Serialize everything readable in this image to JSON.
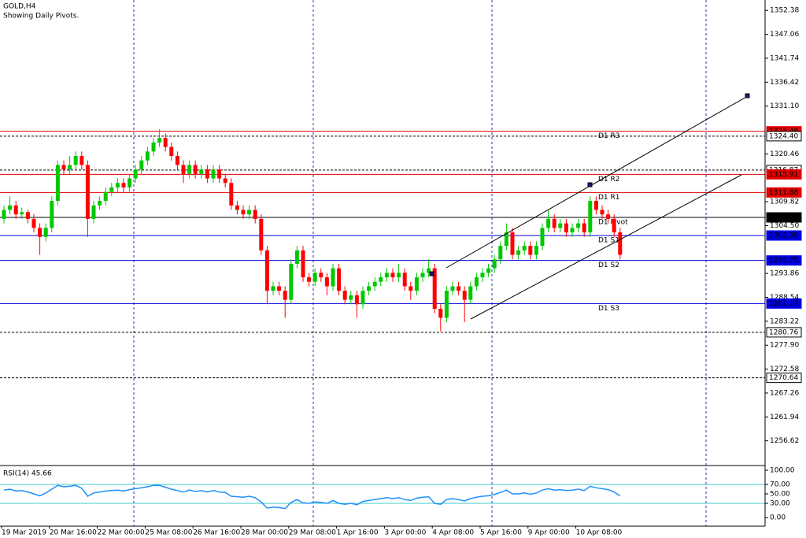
{
  "chart_data": {
    "type": "candlestick",
    "title": "GOLD,H4",
    "subtitle": "Showing Daily Pivots.",
    "up_color": "#00c800",
    "down_color": "#ff0000",
    "ylim": [
      1251.3,
      1354.7
    ],
    "yticks": [
      1352.38,
      1347.06,
      1341.74,
      1336.42,
      {
        "value": 1331.1,
        "label": "1331.10"
      },
      1320.46,
      1309.82,
      {
        "value": 1304.5,
        "label": "1304.50"
      },
      1293.86,
      1288.54,
      1283.22,
      {
        "value": 1277.9,
        "label": "1277.90"
      },
      1272.58,
      1267.26,
      1261.94,
      1256.62
    ],
    "xlabels": [
      "19 Mar 2019",
      "20 Mar 16:00",
      "22 Mar 00:00",
      "25 Mar 08:00",
      "26 Mar 16:00",
      "28 Mar 00:00",
      "29 Mar 08:00",
      "1 Apr 16:00",
      "3 Apr 00:00",
      "4 Apr 08:00",
      "5 Apr 16:00",
      "9 Apr 00:00",
      "10 Apr 08:00"
    ],
    "levels": [
      {
        "name": "D1 R3",
        "value": 1325.49,
        "color": "#e00000",
        "dashed": false
      },
      {
        "value": 1324.4,
        "label": "1324.40",
        "color": "#000000",
        "dashed": true
      },
      {
        "value": 1316.87,
        "color": "#000000",
        "dashed": true
      },
      {
        "name": "D1 R2",
        "value": 1315.91,
        "color": "#e00000",
        "dashed": false
      },
      {
        "name": "D1 R1",
        "value": 1311.88,
        "color": "#e00000",
        "dashed": false
      },
      {
        "name": "D1 Pivot",
        "value": 1306.33,
        "color": "#000000",
        "dashed": false
      },
      {
        "name": "D1 S1",
        "value": 1302.3,
        "label": "1302.30",
        "color": "#0000e0",
        "dashed": false
      },
      {
        "name": "D1 S2",
        "value": 1296.75,
        "color": "#0000e0",
        "dashed": false
      },
      {
        "name": "D1 S3",
        "value": 1287.17,
        "color": "#0000e0",
        "dashed": false
      },
      {
        "value": 1280.76,
        "color": "#000000",
        "dashed": true
      },
      {
        "value": 1270.64,
        "color": "#000000",
        "dashed": true
      }
    ],
    "ohlc": [
      [
        1306,
        1309,
        1305,
        1308
      ],
      [
        1308,
        1311,
        1307,
        1309
      ],
      [
        1309,
        1310,
        1306,
        1307
      ],
      [
        1307,
        1308.5,
        1306,
        1307.5
      ],
      [
        1307.5,
        1308,
        1305,
        1306
      ],
      [
        1306,
        1307,
        1303,
        1304
      ],
      [
        1304,
        1305,
        1298,
        1302
      ],
      [
        1302,
        1305,
        1301,
        1304
      ],
      [
        1304,
        1311,
        1303,
        1310
      ],
      [
        1310,
        1319,
        1309,
        1318
      ],
      [
        1318,
        1319,
        1316,
        1317
      ],
      [
        1317,
        1320,
        1316,
        1318
      ],
      [
        1318,
        1321,
        1317,
        1320
      ],
      [
        1320,
        1321,
        1317,
        1318
      ],
      [
        1318,
        1319,
        1302,
        1306
      ],
      [
        1306,
        1310,
        1305,
        1309
      ],
      [
        1309,
        1311,
        1308,
        1310
      ],
      [
        1310,
        1313,
        1309,
        1312
      ],
      [
        1312,
        1314,
        1311,
        1313
      ],
      [
        1313,
        1315,
        1312,
        1314
      ],
      [
        1314,
        1315,
        1312,
        1313
      ],
      [
        1313,
        1316,
        1312,
        1315
      ],
      [
        1315,
        1318,
        1314,
        1317
      ],
      [
        1317,
        1320,
        1316,
        1319
      ],
      [
        1319,
        1322,
        1318,
        1321
      ],
      [
        1321,
        1324,
        1320,
        1323
      ],
      [
        1323,
        1326,
        1322,
        1324
      ],
      [
        1324,
        1325,
        1321,
        1322
      ],
      [
        1322,
        1323,
        1319,
        1320
      ],
      [
        1320,
        1321,
        1317,
        1318
      ],
      [
        1318,
        1319,
        1314,
        1316
      ],
      [
        1316,
        1319,
        1315,
        1318
      ],
      [
        1318,
        1319,
        1315,
        1316
      ],
      [
        1316,
        1318,
        1315,
        1317
      ],
      [
        1317,
        1318,
        1314,
        1315
      ],
      [
        1315,
        1318,
        1314,
        1317
      ],
      [
        1317,
        1318,
        1314,
        1315
      ],
      [
        1315,
        1316,
        1313,
        1314
      ],
      [
        1314,
        1315,
        1308,
        1309
      ],
      [
        1309,
        1310,
        1307,
        1308
      ],
      [
        1308,
        1309,
        1306,
        1307
      ],
      [
        1307,
        1309,
        1306,
        1308
      ],
      [
        1308,
        1309,
        1305,
        1306
      ],
      [
        1306,
        1307,
        1298,
        1299
      ],
      [
        1299,
        1300,
        1287,
        1290
      ],
      [
        1290,
        1292,
        1289,
        1291
      ],
      [
        1291,
        1292,
        1289,
        1290
      ],
      [
        1290,
        1291,
        1284,
        1288
      ],
      [
        1288,
        1297,
        1287,
        1296
      ],
      [
        1296,
        1300,
        1295,
        1299
      ],
      [
        1299,
        1300,
        1292,
        1293
      ],
      [
        1293,
        1294,
        1291,
        1292
      ],
      [
        1292,
        1295,
        1291,
        1294
      ],
      [
        1294,
        1295,
        1292,
        1293
      ],
      [
        1293,
        1294,
        1289,
        1291
      ],
      [
        1291,
        1296,
        1290,
        1295
      ],
      [
        1295,
        1296,
        1289,
        1290
      ],
      [
        1290,
        1291,
        1287,
        1288
      ],
      [
        1288,
        1290,
        1287,
        1289
      ],
      [
        1289,
        1290,
        1284,
        1287
      ],
      [
        1287,
        1291,
        1286,
        1290
      ],
      [
        1290,
        1292,
        1289,
        1291
      ],
      [
        1291,
        1293,
        1290,
        1292
      ],
      [
        1292,
        1294,
        1291,
        1293
      ],
      [
        1293,
        1295,
        1292,
        1294
      ],
      [
        1294,
        1295,
        1292,
        1293
      ],
      [
        1293,
        1296,
        1292,
        1294
      ],
      [
        1294,
        1295,
        1290,
        1291
      ],
      [
        1291,
        1292,
        1288,
        1290
      ],
      [
        1290,
        1294,
        1289,
        1293
      ],
      [
        1293,
        1295,
        1292,
        1294
      ],
      [
        1294,
        1297,
        1293,
        1295
      ],
      [
        1295,
        1296,
        1285,
        1286
      ],
      [
        1286,
        1287,
        1281,
        1284
      ],
      [
        1284,
        1291,
        1283,
        1290
      ],
      [
        1290,
        1292,
        1289,
        1291
      ],
      [
        1291,
        1292,
        1289,
        1290
      ],
      [
        1290,
        1291,
        1283,
        1288
      ],
      [
        1288,
        1292,
        1287,
        1291
      ],
      [
        1291,
        1294,
        1290,
        1293
      ],
      [
        1293,
        1295,
        1292,
        1294
      ],
      [
        1294,
        1296,
        1293,
        1295
      ],
      [
        1295,
        1298,
        1294,
        1297
      ],
      [
        1297,
        1301,
        1296,
        1300
      ],
      [
        1300,
        1305,
        1299,
        1303
      ],
      [
        1303,
        1304,
        1297,
        1298
      ],
      [
        1298,
        1300,
        1297,
        1299
      ],
      [
        1299,
        1301,
        1298,
        1300
      ],
      [
        1300,
        1301,
        1297,
        1298
      ],
      [
        1298,
        1301,
        1297,
        1300
      ],
      [
        1300,
        1305,
        1299,
        1304
      ],
      [
        1304,
        1308,
        1303,
        1306
      ],
      [
        1306,
        1307,
        1303,
        1304
      ],
      [
        1304,
        1306,
        1303,
        1305
      ],
      [
        1305,
        1306,
        1302,
        1303
      ],
      [
        1303,
        1305,
        1302,
        1304
      ],
      [
        1304,
        1306,
        1303,
        1305
      ],
      [
        1305,
        1306,
        1302,
        1303
      ],
      [
        1303,
        1311,
        1302,
        1310
      ],
      [
        1310,
        1311,
        1307,
        1308
      ],
      [
        1308,
        1309,
        1306,
        1307
      ],
      [
        1307,
        1308,
        1305,
        1306
      ],
      [
        1306,
        1307,
        1302,
        1303
      ],
      [
        1303,
        1304,
        1297,
        1298
      ]
    ],
    "rsi": {
      "title": "RSI(14) 45.66",
      "color": "#1e90ff",
      "level_color": "#40c8c8",
      "levels": [
        70,
        30
      ],
      "ylim": [
        -18.3,
        108.3
      ],
      "yticks": [
        {
          "value": 100,
          "label": "100.00"
        },
        {
          "value": 70,
          "label": "70.00"
        },
        {
          "value": 50,
          "label": "50.00"
        },
        {
          "value": 30,
          "label": "30.00"
        },
        {
          "value": 0,
          "label": "0.00"
        }
      ],
      "values": [
        58,
        60,
        56,
        57,
        54,
        50,
        46,
        52,
        60,
        68,
        65,
        66,
        68,
        62,
        45,
        52,
        54,
        56,
        57,
        58,
        56,
        59,
        61,
        63,
        65,
        68,
        68,
        64,
        60,
        57,
        54,
        58,
        55,
        57,
        54,
        57,
        54,
        53,
        45,
        44,
        43,
        45,
        42,
        33,
        20,
        22,
        21,
        19,
        32,
        38,
        31,
        30,
        33,
        32,
        30,
        36,
        30,
        28,
        30,
        27,
        34,
        36,
        38,
        40,
        42,
        40,
        42,
        38,
        36,
        41,
        43,
        44,
        30,
        28,
        38,
        40,
        38,
        35,
        40,
        43,
        45,
        46,
        49,
        53,
        58,
        50,
        50,
        52,
        49,
        52,
        58,
        61,
        58,
        59,
        57,
        58,
        60,
        57,
        66,
        63,
        61,
        59,
        54,
        45.66
      ]
    }
  }
}
